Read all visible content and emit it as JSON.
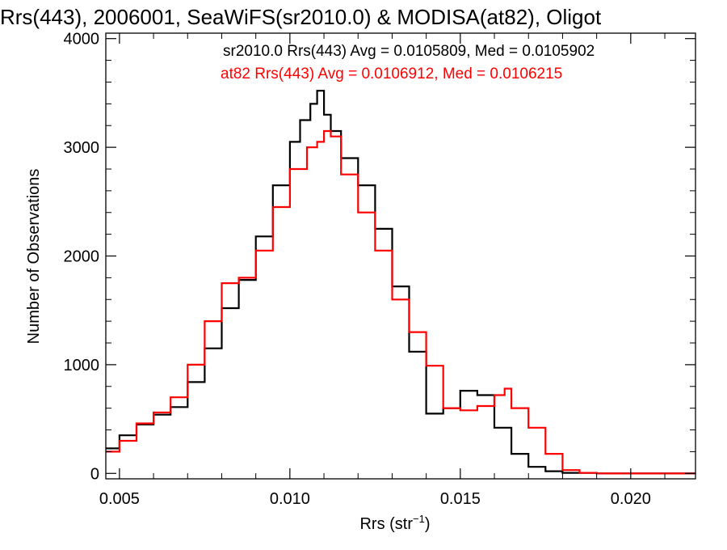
{
  "chart_data": {
    "type": "line",
    "title": "Rrs(443), 2006001, SeaWiFS(sr2010.0) & MODISA(at82), Oligot",
    "xlabel_main": "Rrs (str",
    "xlabel_sup": "−1",
    "xlabel_tail": ")",
    "ylabel": "Number of Observations",
    "xlim": [
      0.0046,
      0.0219
    ],
    "ylim": [
      -50,
      4050
    ],
    "x_ticks": [
      {
        "value": 0.005,
        "label": "0.005"
      },
      {
        "value": 0.01,
        "label": "0.010"
      },
      {
        "value": 0.015,
        "label": "0.015"
      },
      {
        "value": 0.02,
        "label": "0.020"
      }
    ],
    "y_ticks": [
      {
        "value": 0,
        "label": "0"
      },
      {
        "value": 1000,
        "label": "1000"
      },
      {
        "value": 2000,
        "label": "2000"
      },
      {
        "value": 3000,
        "label": "3000"
      },
      {
        "value": 4000,
        "label": "4000"
      }
    ],
    "grid": false,
    "series": [
      {
        "name": "sr2010.0",
        "legend_text": "sr2010.0 Rrs(443) Avg = 0.0105809, Med = 0.0105902",
        "color": "#000000",
        "points": [
          [
            0.0046,
            230
          ],
          [
            0.005,
            350
          ],
          [
            0.0055,
            450
          ],
          [
            0.006,
            540
          ],
          [
            0.0065,
            610
          ],
          [
            0.007,
            840
          ],
          [
            0.0075,
            1150
          ],
          [
            0.008,
            1520
          ],
          [
            0.0085,
            1780
          ],
          [
            0.009,
            2180
          ],
          [
            0.0095,
            2650
          ],
          [
            0.01,
            3050
          ],
          [
            0.0103,
            3250
          ],
          [
            0.0106,
            3400
          ],
          [
            0.0108,
            3520
          ],
          [
            0.011,
            3300
          ],
          [
            0.0112,
            3150
          ],
          [
            0.0115,
            2900
          ],
          [
            0.012,
            2650
          ],
          [
            0.0125,
            2250
          ],
          [
            0.013,
            1720
          ],
          [
            0.0135,
            1120
          ],
          [
            0.014,
            550
          ],
          [
            0.0145,
            600
          ],
          [
            0.015,
            760
          ],
          [
            0.0155,
            720
          ],
          [
            0.016,
            420
          ],
          [
            0.0165,
            180
          ],
          [
            0.017,
            60
          ],
          [
            0.0175,
            20
          ],
          [
            0.018,
            5
          ],
          [
            0.019,
            0
          ],
          [
            0.0219,
            0
          ]
        ]
      },
      {
        "name": "at82",
        "legend_text": "at82 Rrs(443) Avg = 0.0106912, Med = 0.0106215",
        "color": "#ff0000",
        "points": [
          [
            0.0046,
            200
          ],
          [
            0.005,
            300
          ],
          [
            0.0055,
            460
          ],
          [
            0.006,
            560
          ],
          [
            0.0065,
            700
          ],
          [
            0.007,
            1000
          ],
          [
            0.0075,
            1400
          ],
          [
            0.008,
            1750
          ],
          [
            0.0085,
            1800
          ],
          [
            0.009,
            2050
          ],
          [
            0.0095,
            2450
          ],
          [
            0.01,
            2800
          ],
          [
            0.0105,
            3000
          ],
          [
            0.0108,
            3050
          ],
          [
            0.011,
            3150
          ],
          [
            0.0112,
            3100
          ],
          [
            0.0115,
            2750
          ],
          [
            0.012,
            2400
          ],
          [
            0.0125,
            2050
          ],
          [
            0.013,
            1600
          ],
          [
            0.0135,
            1300
          ],
          [
            0.014,
            990
          ],
          [
            0.0145,
            600
          ],
          [
            0.015,
            580
          ],
          [
            0.0155,
            620
          ],
          [
            0.016,
            720
          ],
          [
            0.0163,
            780
          ],
          [
            0.0165,
            600
          ],
          [
            0.017,
            420
          ],
          [
            0.0175,
            180
          ],
          [
            0.018,
            30
          ],
          [
            0.0185,
            5
          ],
          [
            0.019,
            0
          ],
          [
            0.0219,
            0
          ]
        ]
      }
    ]
  }
}
